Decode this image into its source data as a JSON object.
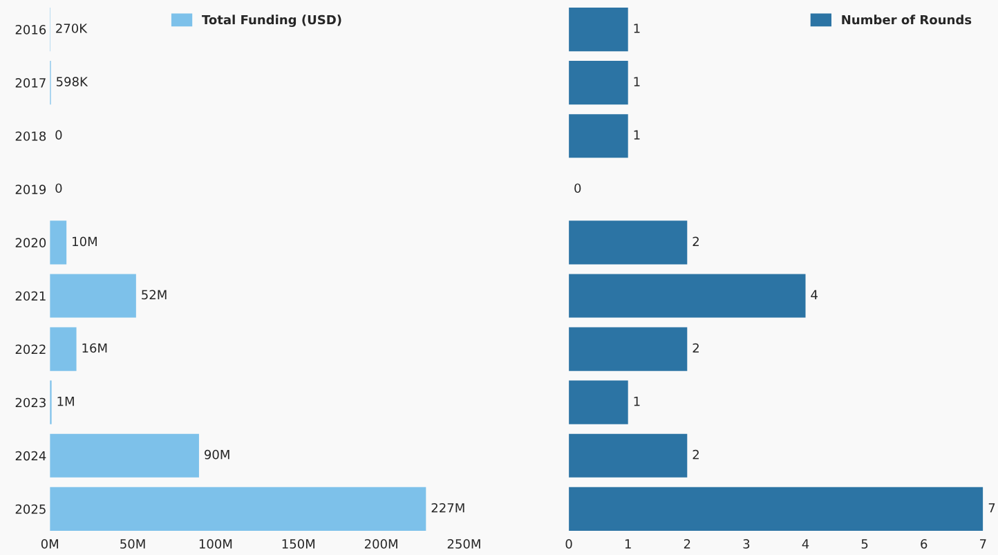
{
  "chart_data": [
    {
      "type": "bar",
      "orientation": "horizontal",
      "categories": [
        "2016",
        "2017",
        "2018",
        "2019",
        "2020",
        "2021",
        "2022",
        "2023",
        "2024",
        "2025"
      ],
      "series": [
        {
          "name": "Total Funding (USD)",
          "color": "#7dc1ea",
          "values": [
            270000,
            598000,
            0,
            0,
            10000000,
            52000000,
            16000000,
            1000000,
            90000000,
            227000000
          ],
          "value_labels": [
            "270K",
            "598K",
            "0",
            "0",
            "10M",
            "52M",
            "16M",
            "1M",
            "90M",
            "227M"
          ]
        }
      ],
      "xlim": [
        0,
        250000000
      ],
      "xticks": [
        {
          "value": 0,
          "label": "0M"
        },
        {
          "value": 50000000,
          "label": "50M"
        },
        {
          "value": 100000000,
          "label": "100M"
        },
        {
          "value": 150000000,
          "label": "150M"
        },
        {
          "value": 200000000,
          "label": "200M"
        },
        {
          "value": 250000000,
          "label": "250M"
        }
      ],
      "legend": "top",
      "grid": false
    },
    {
      "type": "bar",
      "orientation": "horizontal",
      "categories": [
        "2016",
        "2017",
        "2018",
        "2019",
        "2020",
        "2021",
        "2022",
        "2023",
        "2024",
        "2025"
      ],
      "series": [
        {
          "name": "Number of Rounds",
          "color": "#2c74a4",
          "values": [
            1,
            1,
            1,
            0,
            2,
            4,
            2,
            1,
            2,
            7
          ]
        }
      ],
      "xlim": [
        0,
        7
      ],
      "xticks": [
        0,
        1,
        2,
        3,
        4,
        5,
        6,
        7
      ],
      "data_labels": true,
      "tick_labels": "x",
      "legend": "top right",
      "grid": false
    }
  ]
}
